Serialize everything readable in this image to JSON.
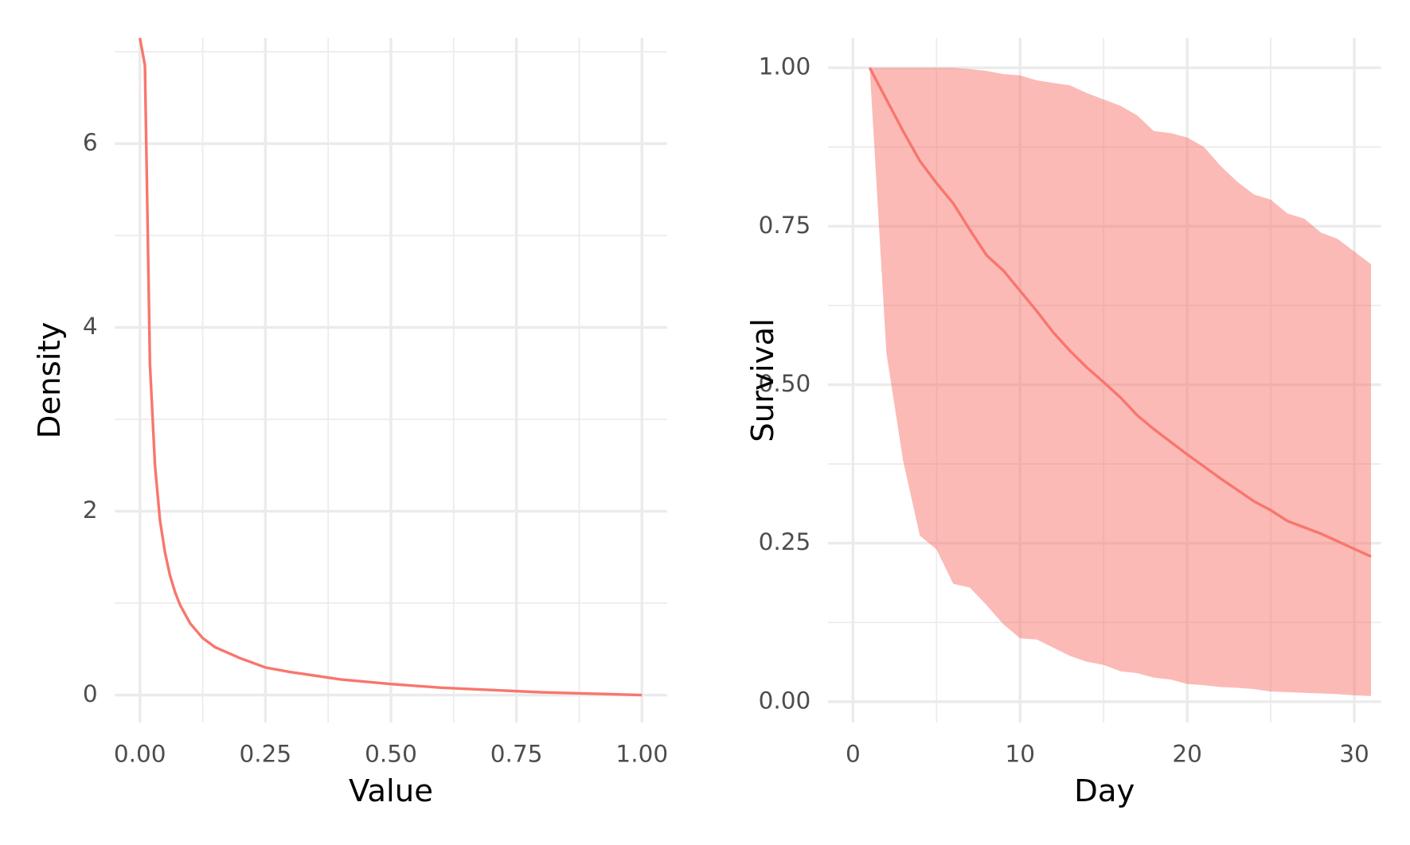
{
  "chart_data": [
    {
      "type": "line",
      "x_label": "Value",
      "y_label": "Density",
      "color": "#f8766d",
      "x": [
        0,
        0.01,
        0.02,
        0.03,
        0.04,
        0.05,
        0.06,
        0.07,
        0.08,
        0.1,
        0.125,
        0.15,
        0.2,
        0.25,
        0.3,
        0.4,
        0.5,
        0.6,
        0.7,
        0.8,
        0.9,
        1.0
      ],
      "values": [
        7.15,
        6.85,
        3.6,
        2.5,
        1.9,
        1.55,
        1.3,
        1.12,
        0.98,
        0.78,
        0.62,
        0.52,
        0.4,
        0.3,
        0.25,
        0.17,
        0.12,
        0.08,
        0.055,
        0.03,
        0.015,
        0
      ],
      "xlim": [
        -0.05,
        1.05
      ],
      "ylim": [
        -0.3,
        7.15
      ],
      "xticks": [
        {
          "value": 0,
          "label": "0.00"
        },
        {
          "value": 0.25,
          "label": "0.25"
        },
        {
          "value": 0.5,
          "label": "0.50"
        },
        {
          "value": 0.75,
          "label": "0.75"
        },
        {
          "value": 1,
          "label": "1.00"
        }
      ],
      "yticks": [
        0,
        2,
        4,
        6
      ],
      "grid": true
    },
    {
      "type": "ribbon-line",
      "x_label": "Day",
      "y_label": "Survival",
      "color": "#f8766d",
      "fill_color": "#f8766d",
      "x": [
        1,
        2,
        3,
        4,
        5,
        6,
        7,
        8,
        9,
        10,
        11,
        12,
        13,
        14,
        15,
        16,
        17,
        18,
        19,
        20,
        21,
        22,
        23,
        24,
        25,
        26,
        27,
        28,
        29,
        30,
        31
      ],
      "values": [
        1.0,
        0.95,
        0.9,
        0.853,
        0.818,
        0.786,
        0.744,
        0.704,
        0.68,
        0.648,
        0.616,
        0.582,
        0.553,
        0.527,
        0.504,
        0.48,
        0.452,
        0.43,
        0.41,
        0.39,
        0.371,
        0.352,
        0.334,
        0.316,
        0.302,
        0.285,
        0.275,
        0.265,
        0.253,
        0.241,
        0.229
      ],
      "upper": [
        1.0,
        1.0,
        1.0,
        1.0,
        1.0,
        1.0,
        0.998,
        0.995,
        0.99,
        0.988,
        0.98,
        0.976,
        0.972,
        0.96,
        0.95,
        0.94,
        0.925,
        0.9,
        0.897,
        0.89,
        0.875,
        0.845,
        0.82,
        0.8,
        0.792,
        0.77,
        0.762,
        0.74,
        0.73,
        0.71,
        0.69
      ],
      "lower": [
        1.0,
        0.55,
        0.38,
        0.262,
        0.24,
        0.186,
        0.18,
        0.152,
        0.122,
        0.1,
        0.098,
        0.085,
        0.072,
        0.063,
        0.058,
        0.048,
        0.045,
        0.038,
        0.035,
        0.028,
        0.026,
        0.023,
        0.022,
        0.02,
        0.016,
        0.015,
        0.014,
        0.013,
        0.012,
        0.01,
        0.009
      ],
      "xlim": [
        -1.5,
        31.6
      ],
      "ylim": [
        -0.033,
        1.047
      ],
      "xticks": [
        0,
        10,
        20,
        30
      ],
      "yticks": [
        {
          "value": 0,
          "label": "0.00"
        },
        {
          "value": 0.25,
          "label": "0.25"
        },
        {
          "value": 0.5,
          "label": "0.50"
        },
        {
          "value": 0.75,
          "label": "0.75"
        },
        {
          "value": 1,
          "label": "1.00"
        }
      ],
      "grid": true
    }
  ]
}
